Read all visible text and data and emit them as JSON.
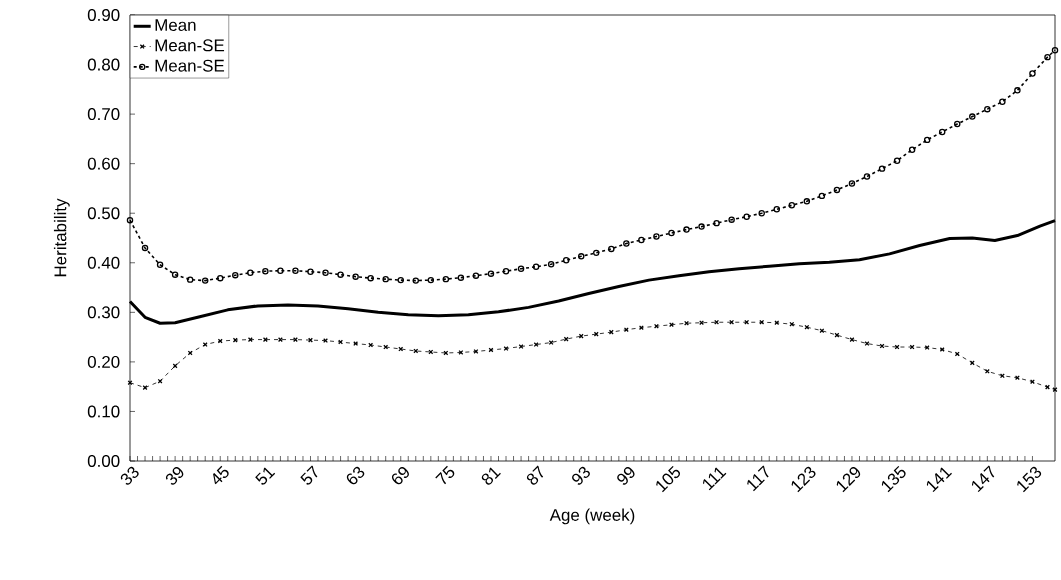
{
  "chart_data": {
    "type": "line",
    "xlabel": "Age (week)",
    "ylabel": "Heritability",
    "xlim": [
      33,
      156
    ],
    "xticks": [
      33,
      39,
      45,
      51,
      57,
      63,
      69,
      75,
      81,
      87,
      93,
      99,
      105,
      111,
      117,
      123,
      129,
      135,
      141,
      147,
      153
    ],
    "ylim": [
      0,
      0.9
    ],
    "yticks": [
      {
        "value": 0,
        "label": "0.00"
      },
      {
        "value": 0.1,
        "label": "0.10"
      },
      {
        "value": 0.2,
        "label": "0.20"
      },
      {
        "value": 0.3,
        "label": "0.30"
      },
      {
        "value": 0.4,
        "label": "0.40"
      },
      {
        "value": 0.5,
        "label": "0.50"
      },
      {
        "value": 0.6,
        "label": "0.60"
      },
      {
        "value": 0.7,
        "label": "0.70"
      },
      {
        "value": 0.8,
        "label": "0.80"
      },
      {
        "value": 0.9,
        "label": "0.90"
      }
    ],
    "legend": "top left",
    "series": [
      {
        "name": "Mean",
        "color": "#000000",
        "line_style": "solid",
        "marker": "none",
        "x": [
          33,
          35,
          37,
          39,
          42,
          46,
          50,
          54,
          58,
          62,
          66,
          70,
          74,
          78,
          82,
          86,
          90,
          94,
          98,
          102,
          106,
          110,
          114,
          118,
          122,
          126,
          130,
          134,
          138,
          142,
          145,
          148,
          151,
          154,
          156
        ],
        "values": [
          0.322,
          0.29,
          0.278,
          0.279,
          0.29,
          0.305,
          0.313,
          0.315,
          0.313,
          0.307,
          0.3,
          0.295,
          0.293,
          0.295,
          0.301,
          0.31,
          0.323,
          0.338,
          0.352,
          0.365,
          0.374,
          0.382,
          0.388,
          0.393,
          0.398,
          0.401,
          0.406,
          0.418,
          0.435,
          0.449,
          0.45,
          0.445,
          0.455,
          0.474,
          0.485
        ]
      },
      {
        "name": "Mean-SE",
        "color": "#000000",
        "line_style": "dashed",
        "marker": "cross",
        "x": [
          33,
          35,
          37,
          39,
          41,
          43,
          45,
          47,
          49,
          51,
          53,
          55,
          57,
          59,
          61,
          63,
          65,
          67,
          69,
          71,
          73,
          75,
          77,
          79,
          81,
          83,
          85,
          87,
          89,
          91,
          93,
          95,
          97,
          99,
          101,
          103,
          105,
          107,
          109,
          111,
          113,
          115,
          117,
          119,
          121,
          123,
          125,
          127,
          129,
          131,
          133,
          135,
          137,
          139,
          141,
          143,
          145,
          147,
          149,
          151,
          153,
          155,
          156
        ],
        "values": [
          0.158,
          0.148,
          0.161,
          0.192,
          0.218,
          0.235,
          0.242,
          0.244,
          0.245,
          0.245,
          0.245,
          0.245,
          0.244,
          0.243,
          0.24,
          0.237,
          0.234,
          0.23,
          0.226,
          0.222,
          0.22,
          0.218,
          0.219,
          0.221,
          0.224,
          0.227,
          0.231,
          0.235,
          0.239,
          0.246,
          0.252,
          0.256,
          0.26,
          0.265,
          0.269,
          0.272,
          0.275,
          0.278,
          0.279,
          0.28,
          0.28,
          0.28,
          0.28,
          0.279,
          0.276,
          0.27,
          0.263,
          0.254,
          0.245,
          0.237,
          0.232,
          0.23,
          0.23,
          0.229,
          0.225,
          0.216,
          0.198,
          0.181,
          0.172,
          0.168,
          0.16,
          0.149,
          0.144
        ]
      },
      {
        "name": "Mean-SE",
        "color": "#000000",
        "line_style": "dotted",
        "marker": "circle",
        "x": [
          33,
          35,
          37,
          39,
          41,
          43,
          45,
          47,
          49,
          51,
          53,
          55,
          57,
          59,
          61,
          63,
          65,
          67,
          69,
          71,
          73,
          75,
          77,
          79,
          81,
          83,
          85,
          87,
          89,
          91,
          93,
          95,
          97,
          99,
          101,
          103,
          105,
          107,
          109,
          111,
          113,
          115,
          117,
          119,
          121,
          123,
          125,
          127,
          129,
          131,
          133,
          135,
          137,
          139,
          141,
          143,
          145,
          147,
          149,
          151,
          153,
          155,
          156
        ],
        "values": [
          0.486,
          0.43,
          0.396,
          0.376,
          0.366,
          0.364,
          0.369,
          0.375,
          0.38,
          0.383,
          0.384,
          0.384,
          0.382,
          0.38,
          0.376,
          0.372,
          0.369,
          0.367,
          0.365,
          0.364,
          0.365,
          0.367,
          0.37,
          0.374,
          0.378,
          0.383,
          0.388,
          0.392,
          0.397,
          0.405,
          0.413,
          0.42,
          0.428,
          0.439,
          0.446,
          0.453,
          0.46,
          0.467,
          0.473,
          0.48,
          0.487,
          0.493,
          0.5,
          0.508,
          0.516,
          0.524,
          0.535,
          0.547,
          0.56,
          0.574,
          0.59,
          0.606,
          0.628,
          0.648,
          0.664,
          0.68,
          0.695,
          0.71,
          0.725,
          0.748,
          0.782,
          0.815,
          0.829
        ]
      }
    ]
  }
}
